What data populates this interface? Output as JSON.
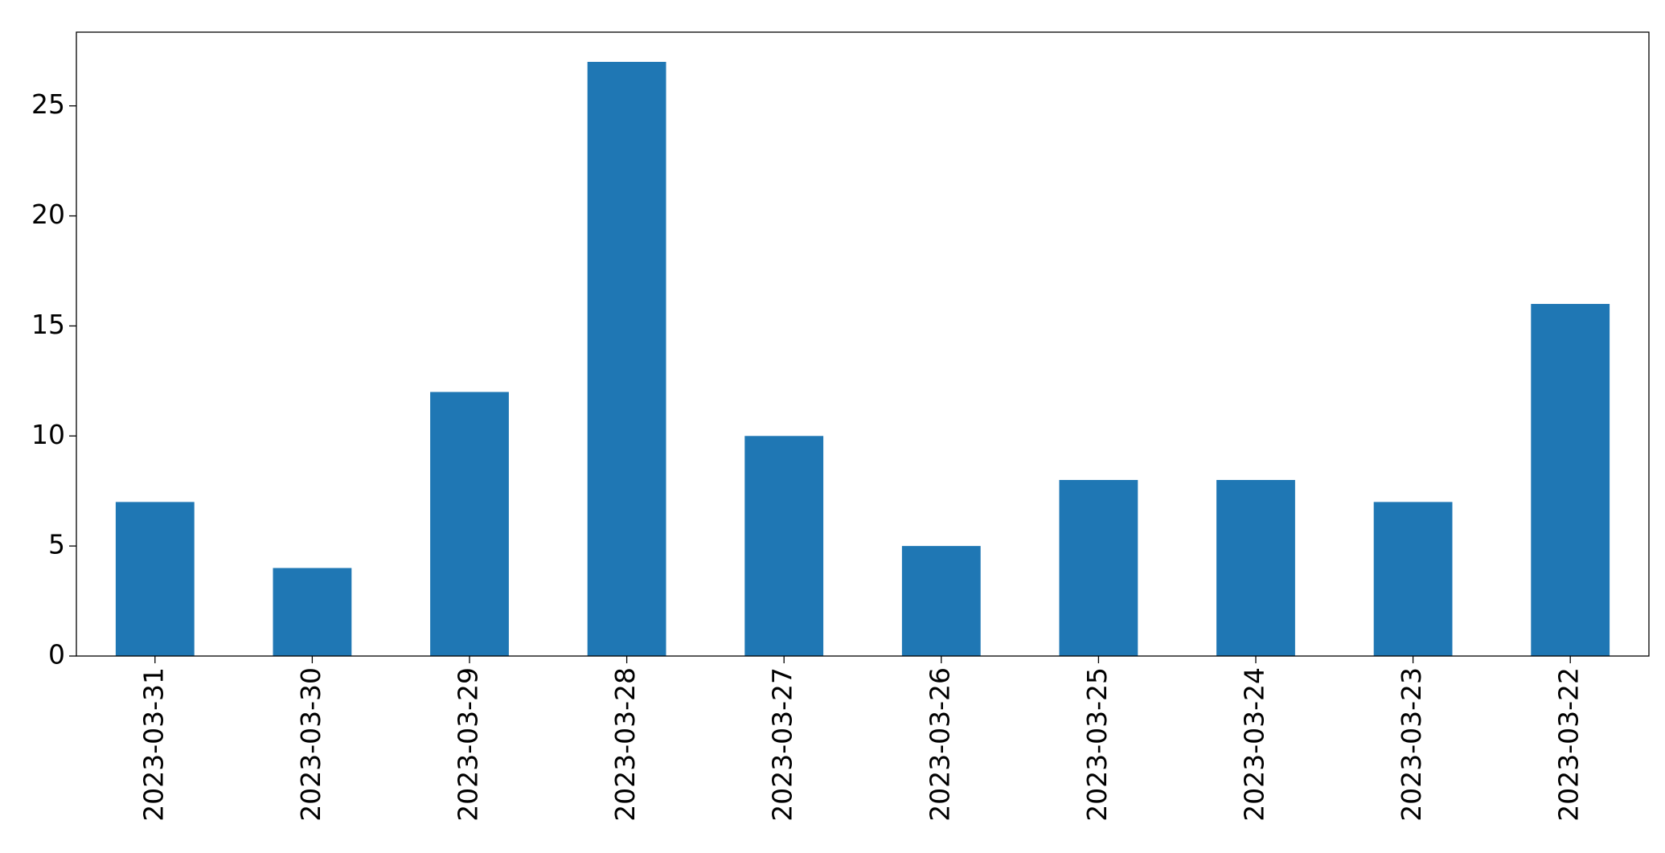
{
  "chart_data": {
    "type": "bar",
    "categories": [
      "2023-03-31",
      "2023-03-30",
      "2023-03-29",
      "2023-03-28",
      "2023-03-27",
      "2023-03-26",
      "2023-03-25",
      "2023-03-24",
      "2023-03-23",
      "2023-03-22"
    ],
    "values": [
      7,
      4,
      12,
      27,
      10,
      5,
      8,
      8,
      7,
      16
    ],
    "color": "#1f77b4",
    "ylim": [
      0,
      28.35
    ],
    "yticks": [
      0,
      5,
      10,
      15,
      20,
      25
    ],
    "grid": false
  }
}
